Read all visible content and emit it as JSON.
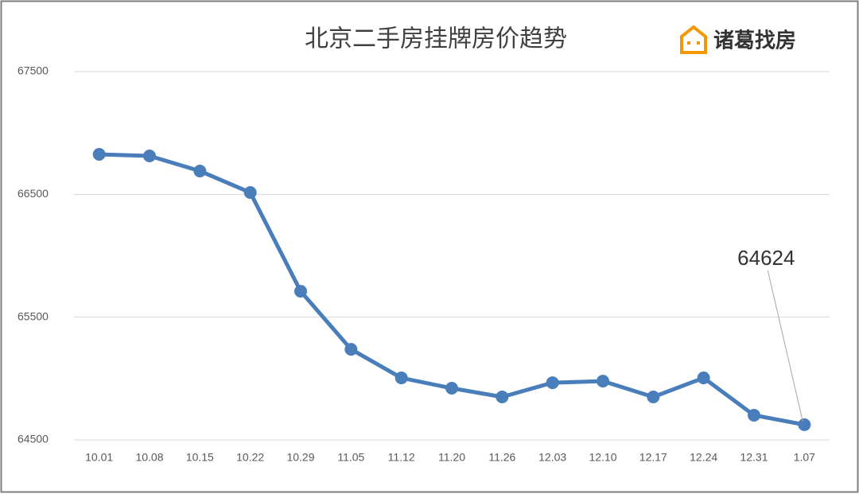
{
  "chart_data": {
    "type": "line",
    "title": "北京二手房挂牌房价趋势",
    "logo": "诸葛找房",
    "categories": [
      "10.01",
      "10.08",
      "10.15",
      "10.22",
      "10.29",
      "11.05",
      "11.12",
      "11.20",
      "11.26",
      "12.03",
      "12.10",
      "12.17",
      "12.24",
      "12.31",
      "1.07"
    ],
    "values": [
      66826,
      66813,
      66690,
      66515,
      65711,
      65238,
      65005,
      64921,
      64850,
      64966,
      64979,
      64850,
      65005,
      64701,
      64624
    ],
    "color": "#4a7ebb",
    "ylim": [
      64500,
      67500
    ],
    "yticks": [
      64500,
      65500,
      66500,
      67500
    ],
    "grid": true,
    "data_labels": "last"
  }
}
